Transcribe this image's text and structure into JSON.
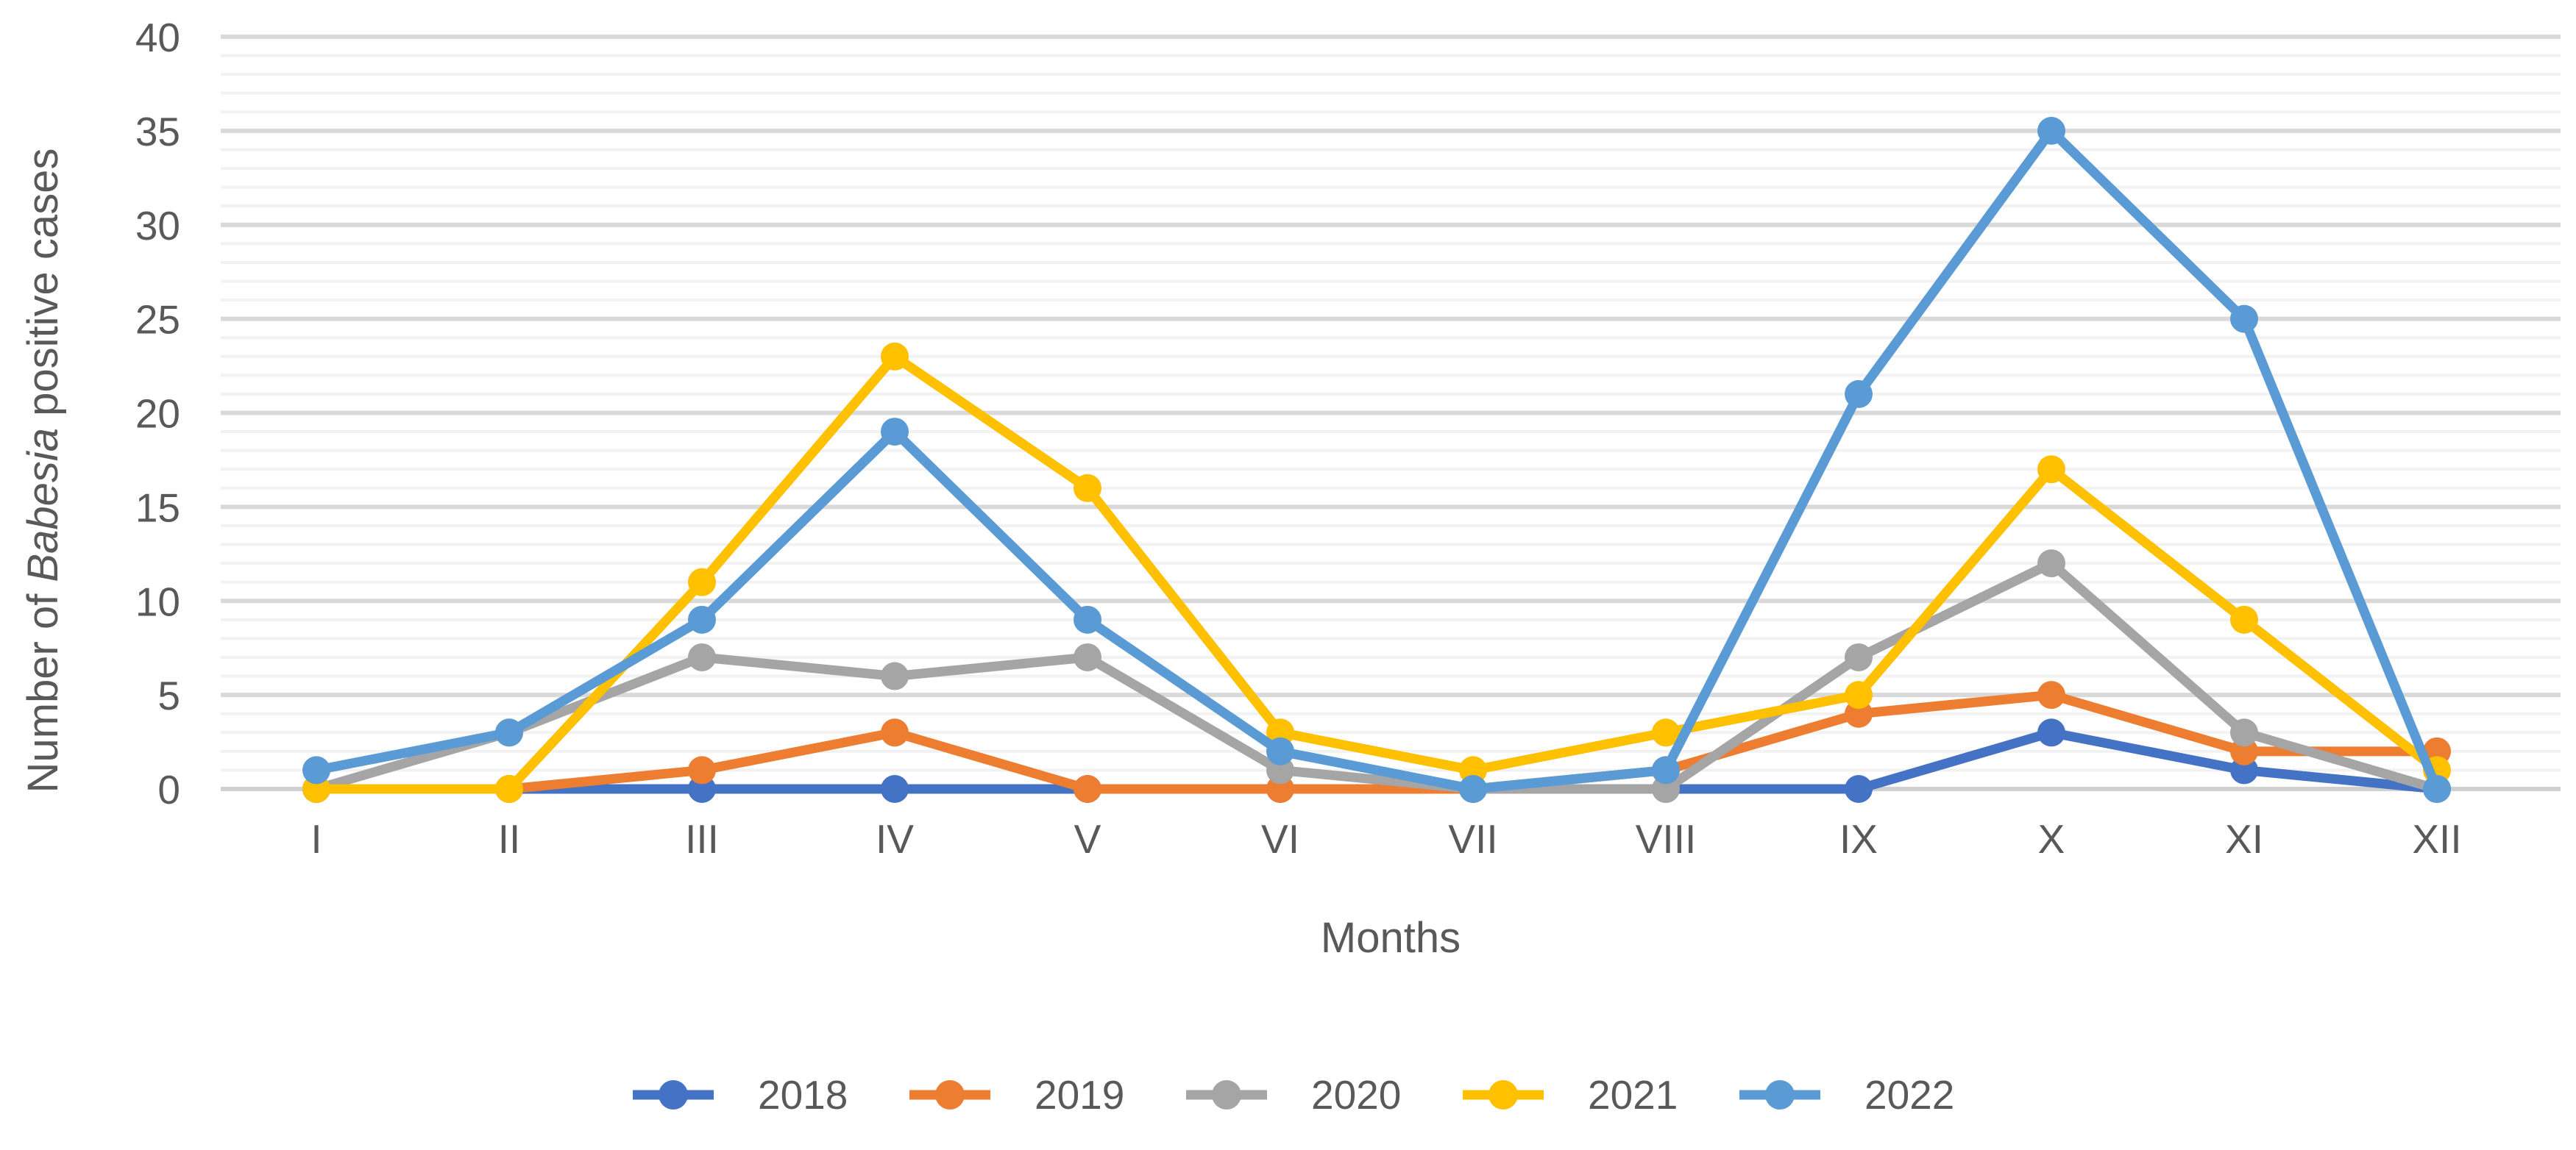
{
  "chart_data": {
    "type": "line",
    "categories": [
      "I",
      "II",
      "III",
      "IV",
      "V",
      "VI",
      "VII",
      "VIII",
      "IX",
      "X",
      "XI",
      "XII"
    ],
    "series": [
      {
        "name": "2018",
        "color": "#4472C4",
        "values": [
          0,
          0,
          0,
          0,
          0,
          0,
          0,
          0,
          0,
          3,
          1,
          0
        ]
      },
      {
        "name": "2019",
        "color": "#ED7D31",
        "values": [
          0,
          0,
          1,
          3,
          0,
          0,
          0,
          1,
          4,
          5,
          2,
          2
        ]
      },
      {
        "name": "2020",
        "color": "#A5A5A5",
        "values": [
          0,
          3,
          7,
          6,
          7,
          1,
          0,
          0,
          7,
          12,
          3,
          0
        ]
      },
      {
        "name": "2021",
        "color": "#FFC000",
        "values": [
          0,
          0,
          11,
          23,
          16,
          3,
          1,
          3,
          5,
          17,
          9,
          1
        ]
      },
      {
        "name": "2022",
        "color": "#5B9BD5",
        "values": [
          1,
          3,
          9,
          19,
          9,
          2,
          0,
          1,
          21,
          35,
          25,
          0
        ]
      }
    ],
    "title": "",
    "xlabel": "Months",
    "ylabel_prefix": "Number of ",
    "ylabel_italic": "Babesia",
    "ylabel_suffix": " positive cases",
    "ylim": [
      0,
      40
    ],
    "ytick_step": 5,
    "minor_grid_step": 1,
    "grid": true,
    "legend_position": "bottom",
    "colors": {
      "axis_text": "#595959",
      "major_gridline": "#D9D9D9",
      "minor_gridline": "#F2F2F2",
      "baseline": "#D0D0D0"
    }
  }
}
